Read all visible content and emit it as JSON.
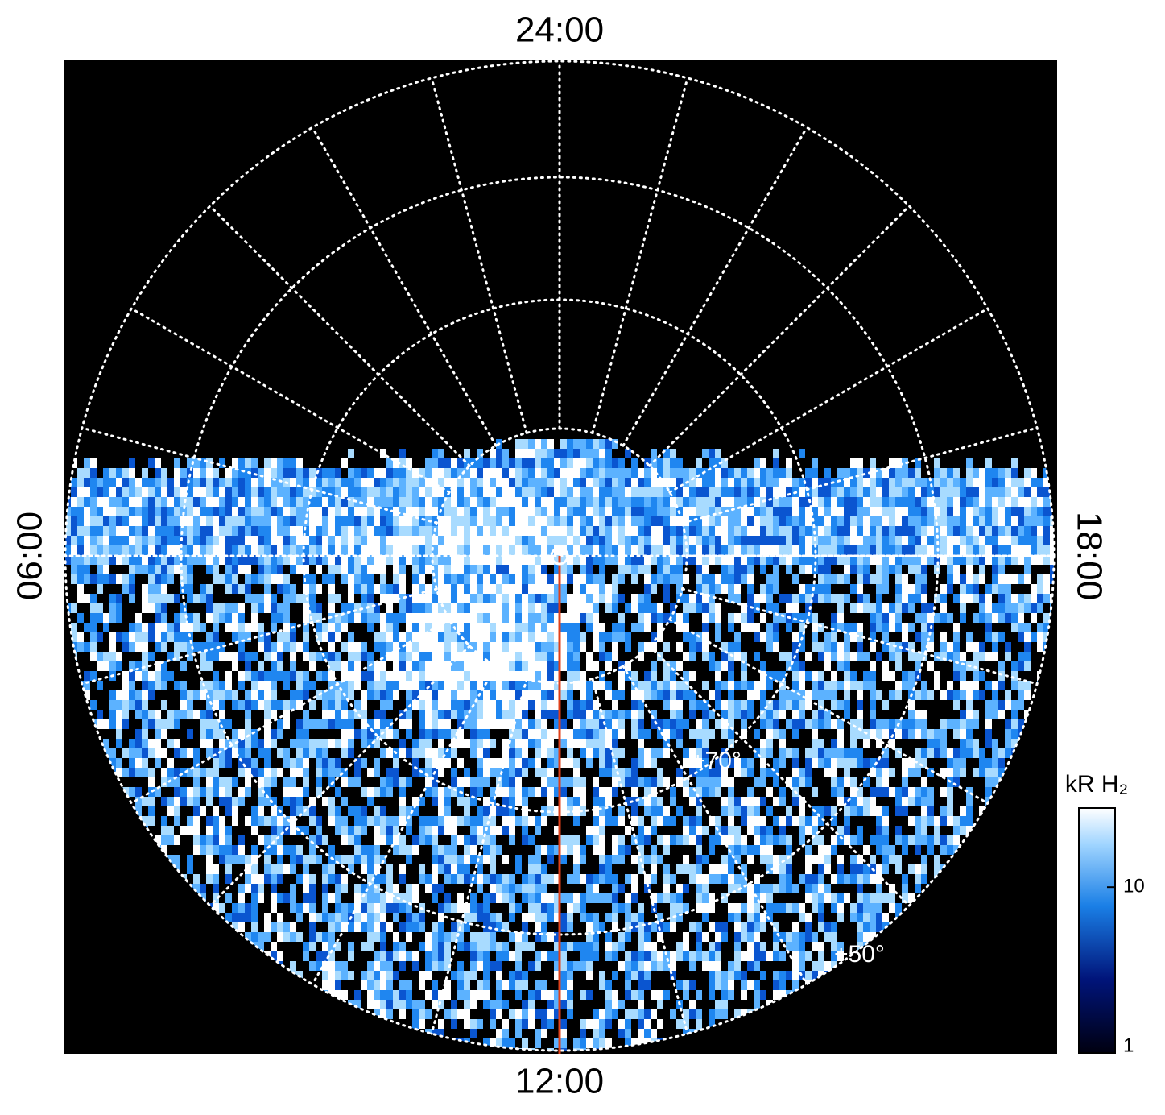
{
  "local_times": {
    "top": "24:00",
    "left": "06:00",
    "right": "18:00",
    "bottom": "12:00"
  },
  "latitude_labels": [
    "+70°",
    "+50°"
  ],
  "colorbar": {
    "label": "kR H₂",
    "scale": "log",
    "range": [
      1,
      30
    ],
    "ticks": [
      1,
      10
    ]
  }
}
